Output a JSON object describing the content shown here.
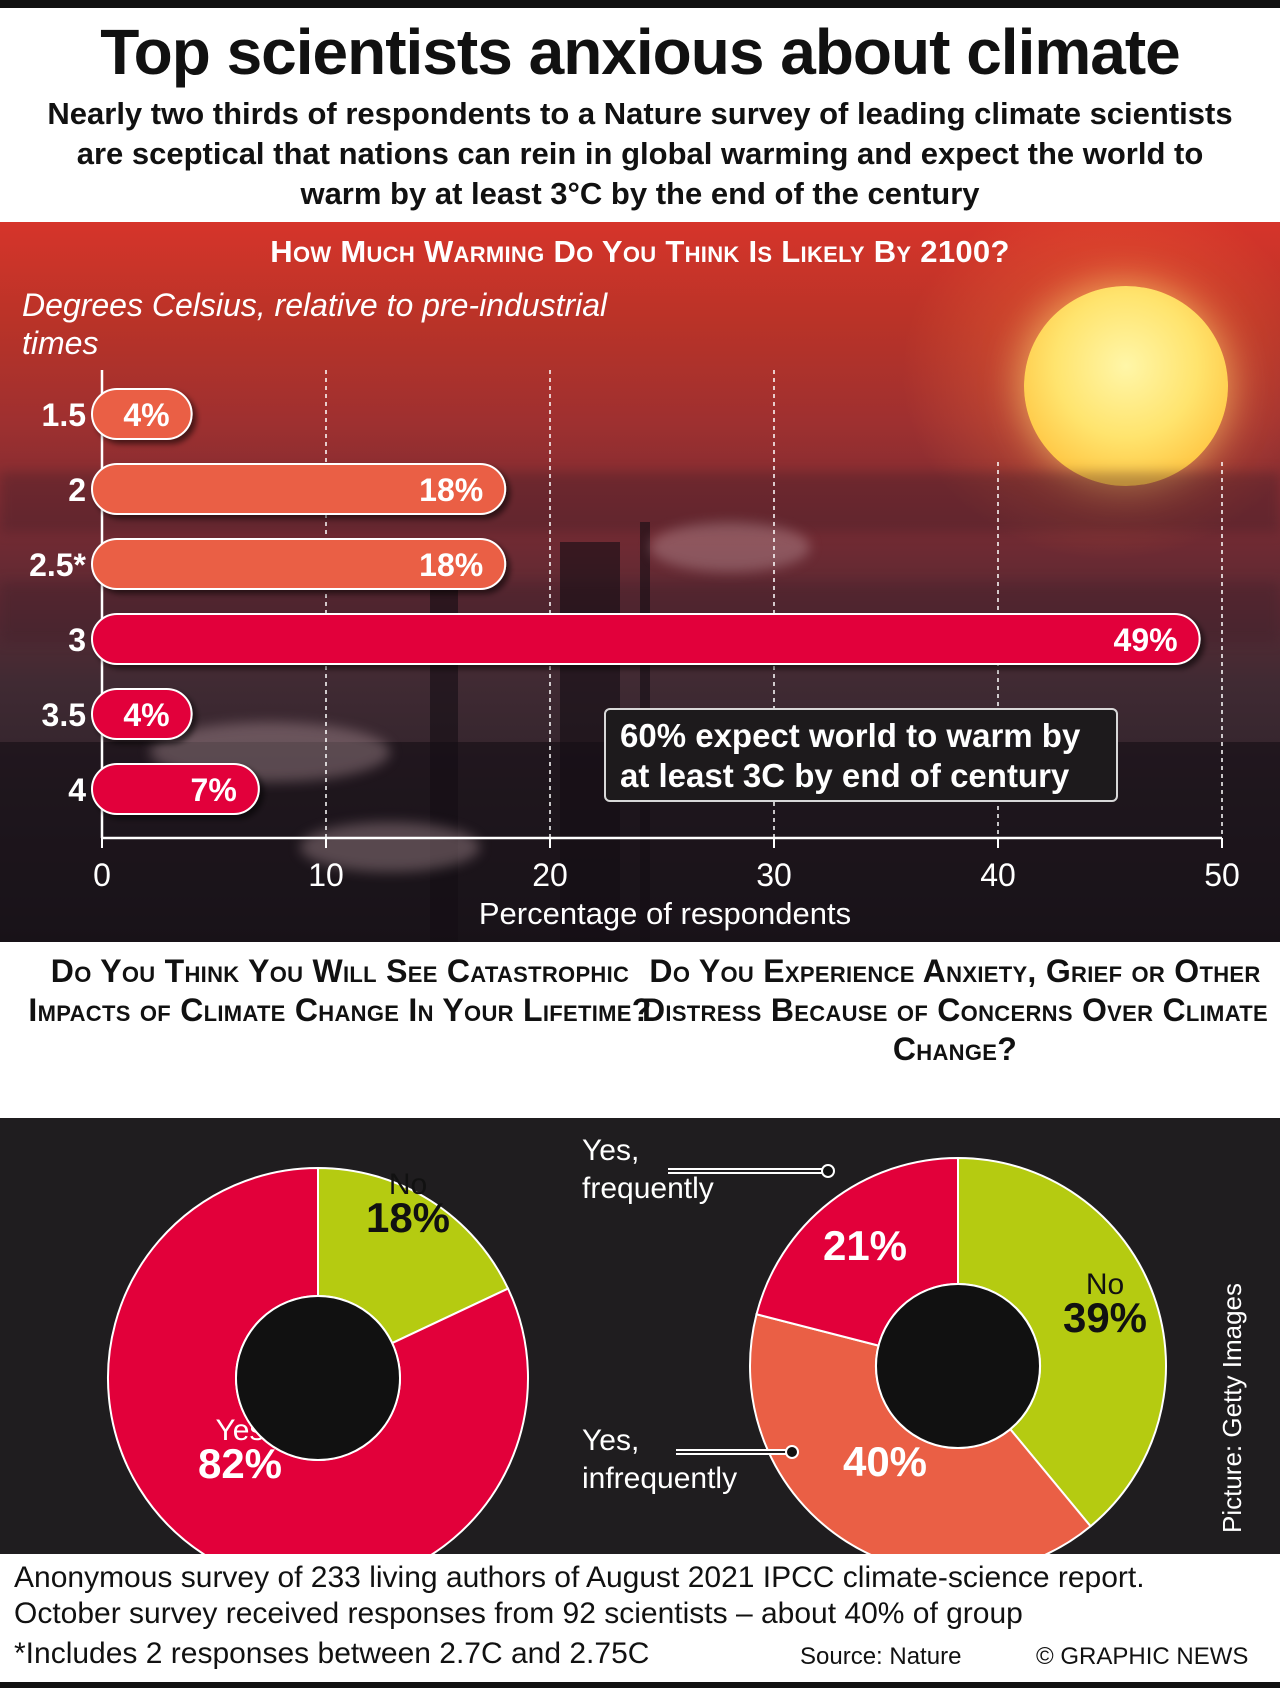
{
  "header": {
    "title": "Top scientists anxious about climate",
    "subtitle": "Nearly two thirds of respondents to a Nature survey of leading climate scientists are sceptical that nations can rein in global warming and expect the world to warm by at least 3°C by the end of the century"
  },
  "chart_data": [
    {
      "type": "bar",
      "orientation": "horizontal",
      "title": "How Much Warming Do You Think Is Likely By 2100?",
      "ylabel": "Degrees Celsius, relative to pre-industrial times",
      "xlabel": "Percentage of respondents",
      "categories": [
        "1.5",
        "2",
        "2.5*",
        "3",
        "3.5",
        "4"
      ],
      "values": [
        4,
        18,
        18,
        49,
        4,
        7
      ],
      "data_labels": [
        "4%",
        "18%",
        "18%",
        "49%",
        "4%",
        "7%"
      ],
      "bar_colors": [
        "#ea5f45",
        "#ea5f45",
        "#ea5f45",
        "#e2003a",
        "#e2003a",
        "#e2003a"
      ],
      "xlim": [
        0,
        50
      ],
      "xticks": [
        0,
        10,
        20,
        30,
        40,
        50
      ],
      "xtick_labels": [
        "0",
        "10",
        "20",
        "30",
        "40",
        "50"
      ],
      "grid": true,
      "annotation": "60% expect world to warm by at least 3C by end of century"
    },
    {
      "type": "pie",
      "donut": true,
      "title": "Do You Think You Will See Catastrophic Impacts of Climate Change In Your Lifetime?",
      "slices": [
        {
          "name": "No",
          "value": 18,
          "label": "18%",
          "color": "#b5cb11"
        },
        {
          "name": "Yes",
          "value": 82,
          "label": "82%",
          "color": "#e2003a"
        }
      ]
    },
    {
      "type": "pie",
      "donut": true,
      "title": "Do You Experience Anxiety, Grief or Other Distress Because of Concerns Over Climate Change?",
      "slices": [
        {
          "name": "No",
          "value": 39,
          "label": "39%",
          "color": "#b5cb11"
        },
        {
          "name": "Yes, infrequently",
          "value": 40,
          "label": "40%",
          "color": "#ea5f45"
        },
        {
          "name": "Yes, frequently",
          "value": 21,
          "label": "21%",
          "color": "#e2003a"
        }
      ]
    }
  ],
  "footer": {
    "note_1": "Anonymous survey of 233 living authors of August 2021 IPCC climate-science report.",
    "note_2": "October survey received responses from 92 scientists – about 40% of group",
    "asterisk_note": "*Includes 2 responses between 2.7C and 2.75C",
    "source": "Source: Nature",
    "copyright": "© GRAPHIC NEWS",
    "picture_credit": "Picture: Getty Images"
  },
  "colors": {
    "red": "#e2003a",
    "orange": "#ea5f45",
    "green": "#b5cb11",
    "dark_panel": "#1f1d1f"
  }
}
